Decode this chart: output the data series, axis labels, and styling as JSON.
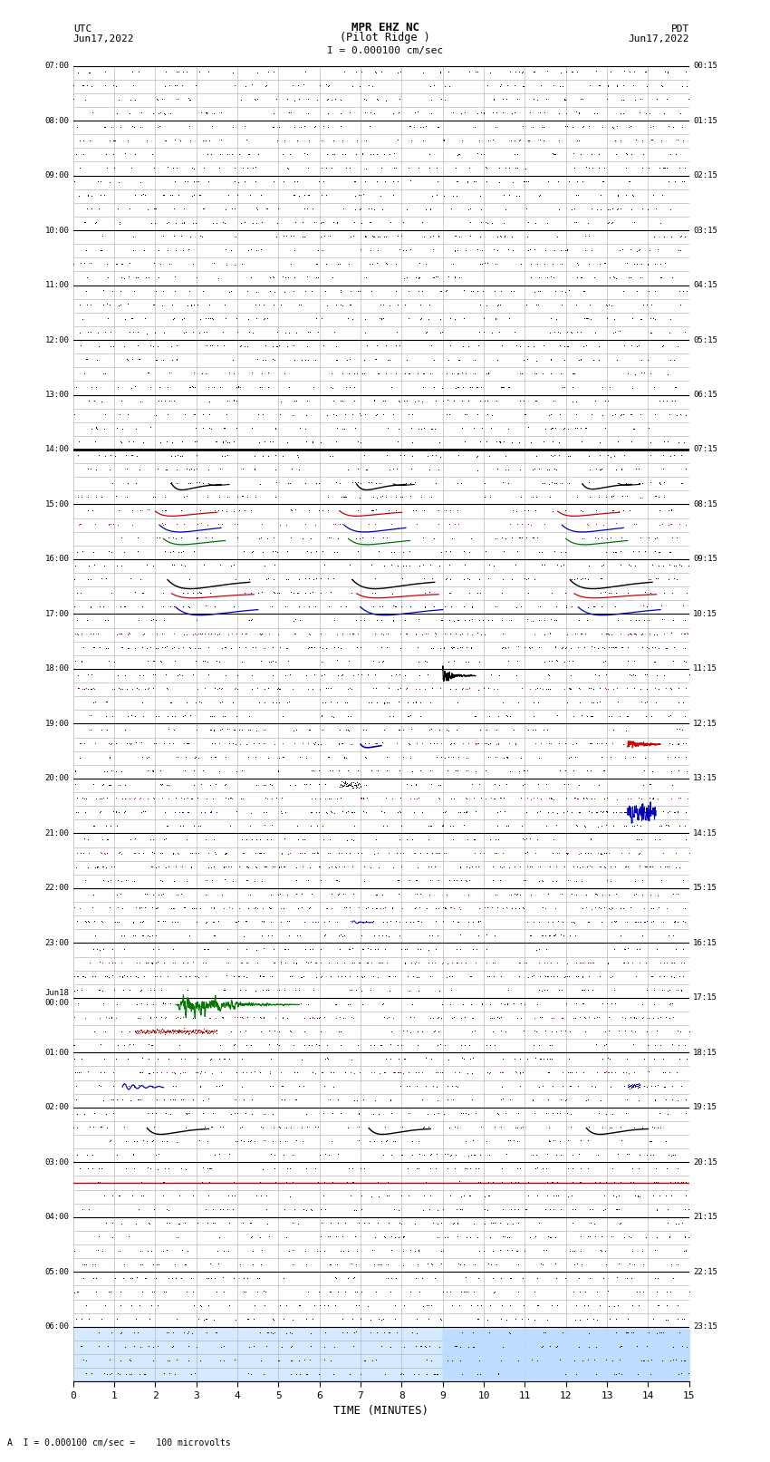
{
  "title_line1": "MPR EHZ NC",
  "title_line2": "(Pilot Ridge )",
  "scale_label": "I = 0.000100 cm/sec",
  "footer_label": "A  I = 0.000100 cm/sec =    100 microvolts",
  "xlabel": "TIME (MINUTES)",
  "xlim": [
    0,
    15
  ],
  "xticks": [
    0,
    1,
    2,
    3,
    4,
    5,
    6,
    7,
    8,
    9,
    10,
    11,
    12,
    13,
    14,
    15
  ],
  "num_hours": 24,
  "subrows_per_hour": 4,
  "left_times": [
    "07:00",
    "08:00",
    "09:00",
    "10:00",
    "11:00",
    "12:00",
    "13:00",
    "14:00",
    "15:00",
    "16:00",
    "17:00",
    "18:00",
    "19:00",
    "20:00",
    "21:00",
    "22:00",
    "23:00",
    "Jun18\n00:00",
    "01:00",
    "02:00",
    "03:00",
    "04:00",
    "05:00",
    "06:00"
  ],
  "right_times": [
    "00:15",
    "01:15",
    "02:15",
    "03:15",
    "04:15",
    "05:15",
    "06:15",
    "07:15",
    "08:15",
    "09:15",
    "10:15",
    "11:15",
    "12:15",
    "13:15",
    "14:15",
    "15:15",
    "16:15",
    "17:15",
    "18:15",
    "19:15",
    "20:15",
    "21:15",
    "22:15",
    "23:15"
  ],
  "bg_color": "#ffffff",
  "grid_color_major": "#000000",
  "grid_color_minor": "#aaaaaa",
  "clr_black": "#000000",
  "clr_blue": "#0000bb",
  "clr_red": "#cc0000",
  "clr_green": "#007700",
  "highlight_color": "#bbddff",
  "thick_line_rows": [
    7
  ],
  "thick_line_color": "#000000"
}
